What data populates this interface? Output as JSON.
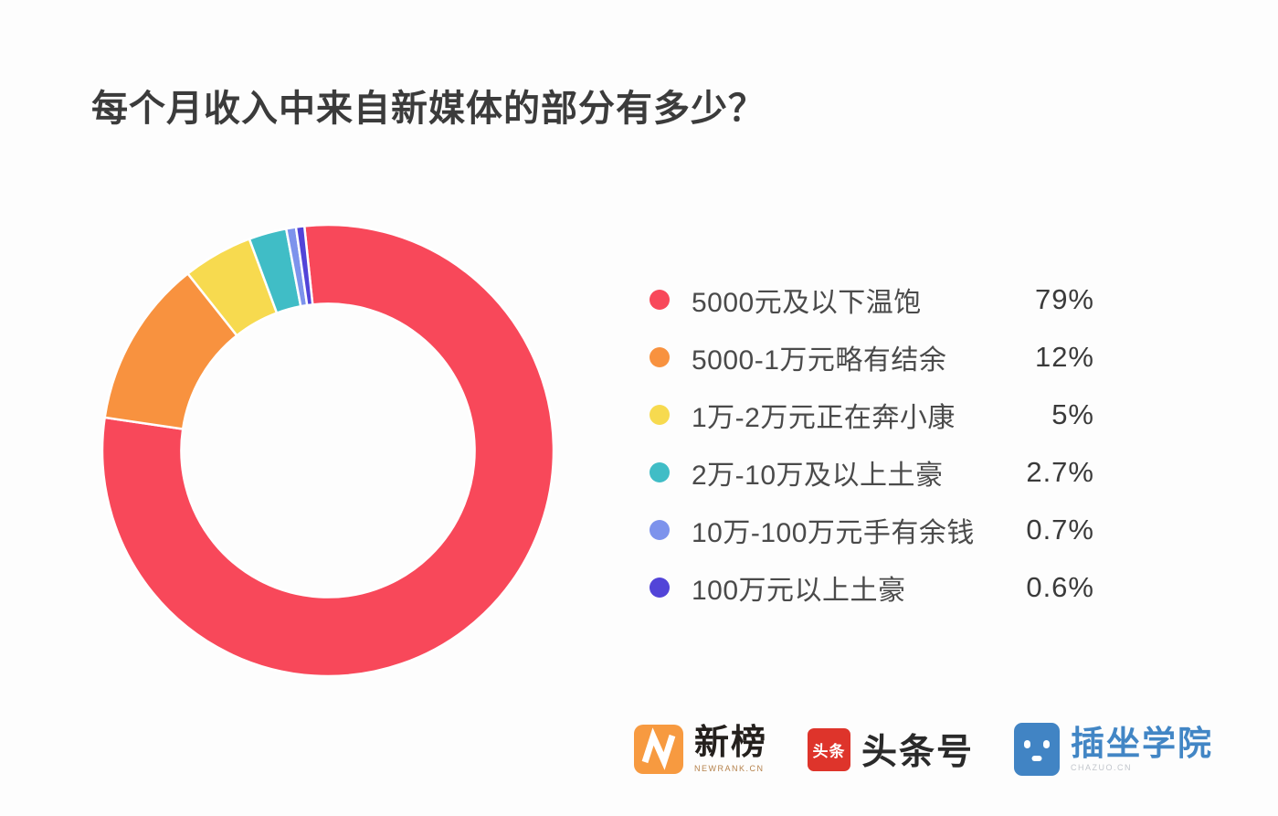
{
  "title": "每个月收入中来自新媒体的部分有多少？",
  "chart_data": {
    "type": "pie",
    "subtype": "donut",
    "title": "每个月收入中来自新媒体的部分有多少？",
    "legend_position": "right",
    "start_angle_deg": -6,
    "direction": "clockwise",
    "inner_radius_ratio": 0.65,
    "slice_gap_color": "#ffffff",
    "slices": [
      {
        "label": "5000元及以下温饱",
        "value": 79,
        "value_label": "79%",
        "color": "#f8485a"
      },
      {
        "label": "5000-1万元略有结余",
        "value": 12,
        "value_label": "12%",
        "color": "#f8923f"
      },
      {
        "label": "1万-2万元正在奔小康",
        "value": 5,
        "value_label": "5%",
        "color": "#f7da4f"
      },
      {
        "label": "2万-10万及以上土豪",
        "value": 2.7,
        "value_label": "2.7%",
        "color": "#40bdc6"
      },
      {
        "label": "10万-100万元手有余钱",
        "value": 0.7,
        "value_label": "0.7%",
        "color": "#7d93ec"
      },
      {
        "label": "100万元以上土豪",
        "value": 0.6,
        "value_label": "0.6%",
        "color": "#5244d8"
      }
    ]
  },
  "footer": {
    "logos": [
      {
        "name": "newrank",
        "brand": "新榜",
        "sub": "NEWRANK.CN",
        "icon_color": "#f79a40"
      },
      {
        "name": "toutiao",
        "icon_text": "头条",
        "brand": "头条号",
        "icon_color": "#de342b"
      },
      {
        "name": "chazuo",
        "brand": "插坐学院",
        "sub": "CHAZUO.CN",
        "icon_color": "#4184c4",
        "text_color": "#4286c5"
      }
    ]
  }
}
